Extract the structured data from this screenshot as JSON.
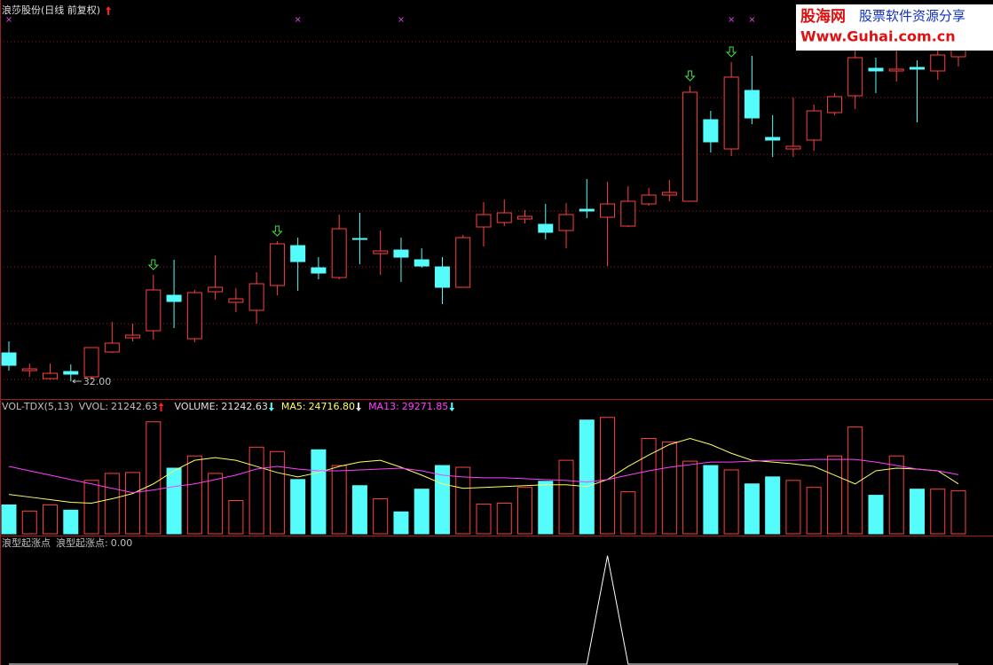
{
  "chart_data": {
    "type": "candlestick",
    "title": "浪莎股份(日线 前复权)",
    "ylim": [
      31,
      53.5
    ],
    "open": [
      33.6,
      32.6,
      32.15,
      32.55,
      32.25,
      33.65,
      34.45,
      34.85,
      36.85,
      34.4,
      37.05,
      36.45,
      36.0,
      37.4,
      39.65,
      38.4,
      37.85,
      40.05,
      39.2,
      39.4,
      38.85,
      38.45,
      37.3,
      40.7,
      40.95,
      41.15,
      40.85,
      40.5,
      41.7,
      41.25,
      40.75,
      42.0,
      42.5,
      42.15,
      46.75,
      45.1,
      48.4,
      45.75,
      45.1,
      45.6,
      47.15,
      48.1,
      49.65,
      49.5,
      49.7,
      49.5,
      50.3
    ],
    "high": [
      34.25,
      33.0,
      33.0,
      32.95,
      33.9,
      35.35,
      35.25,
      38.0,
      38.85,
      37.15,
      39.1,
      37.25,
      38.15,
      39.9,
      40.1,
      39.0,
      41.4,
      41.5,
      40.5,
      40.1,
      39.5,
      39.0,
      40.25,
      42.1,
      42.25,
      41.65,
      42.0,
      42.05,
      43.4,
      43.25,
      43.0,
      42.9,
      43.35,
      48.65,
      47.25,
      50.0,
      50.35,
      47.0,
      48.0,
      47.6,
      48.25,
      51.25,
      50.25,
      51.0,
      50.1,
      50.7,
      51.5
    ],
    "low": [
      32.6,
      32.25,
      32.1,
      32.0,
      32.1,
      33.6,
      34.25,
      34.35,
      35.0,
      34.2,
      36.6,
      35.9,
      35.25,
      36.85,
      37.1,
      37.75,
      37.75,
      38.6,
      38.0,
      37.6,
      38.4,
      36.35,
      37.3,
      39.6,
      40.75,
      40.9,
      40.0,
      39.5,
      41.2,
      38.5,
      40.7,
      41.9,
      42.15,
      42.15,
      44.9,
      44.7,
      46.5,
      44.65,
      44.65,
      45.0,
      47.0,
      47.35,
      48.25,
      48.9,
      46.6,
      49.0,
      49.75
    ],
    "close": [
      32.9,
      32.7,
      32.45,
      32.4,
      33.9,
      34.15,
      34.6,
      37.15,
      36.5,
      37.0,
      37.3,
      36.65,
      37.5,
      39.75,
      38.75,
      38.1,
      40.6,
      40.0,
      39.35,
      39.0,
      38.5,
      37.3,
      40.1,
      41.4,
      41.5,
      41.3,
      40.4,
      41.4,
      41.6,
      42.0,
      42.15,
      42.5,
      42.65,
      48.3,
      45.5,
      49.15,
      46.85,
      45.6,
      45.25,
      47.25,
      48.05,
      50.25,
      49.5,
      49.6,
      49.6,
      50.4,
      50.75
    ],
    "up_color": "#ff4040",
    "down_color": "#54fcfc",
    "cross_markers": [
      0,
      14,
      19,
      35,
      36
    ],
    "cross_color": "#c040c0",
    "buy_arrows": [
      7,
      13,
      33,
      35
    ],
    "buy_arrow_color": "#40e040",
    "low_label": {
      "index": 3,
      "value": 32,
      "label": "32.00"
    },
    "volume": {
      "indicator": "VOL-TDX(5,13)",
      "vvol_label": "VVOL:",
      "ylim": [
        0,
        65000
      ],
      "series": [
        {
          "name": "VOLUME:",
          "color": "#e0e0e0",
          "values": [
            14300,
            11270,
            14300,
            11700,
            26430,
            29900,
            30330,
            55460,
            32500,
            38560,
            29900,
            16470,
            42900,
            40730,
            26870,
            41600,
            33800,
            23830,
            17330,
            10830,
            22100,
            33800,
            32930,
            14730,
            15170,
            22970,
            26000,
            36400,
            56330,
            57630,
            20800,
            47230,
            45500,
            35970,
            33800,
            31630,
            24700,
            28170,
            26430,
            22970,
            38560,
            52870,
            19070,
            38560,
            22100,
            22100,
            21242.63
          ]
        },
        {
          "name": "MA5:",
          "color": "#ffff60",
          "value_label": "24716.80",
          "values": [
            19500,
            18200,
            16900,
            15600,
            15170,
            17330,
            19930,
            24700,
            31200,
            36400,
            37700,
            36400,
            33360,
            30330,
            28160,
            30330,
            33360,
            35530,
            36400,
            32930,
            29030,
            24700,
            22530,
            22960,
            23400,
            23830,
            24260,
            24260,
            23400,
            26860,
            33360,
            39000,
            44200,
            47230,
            44200,
            39860,
            36400,
            35530,
            34660,
            33360,
            29030,
            24700,
            31200,
            32500,
            32060,
            31200,
            24716.8
          ]
        },
        {
          "name": "MA13:",
          "color": "#ff40ff",
          "value_label": "29271.85",
          "values": [
            33360,
            31200,
            29030,
            26860,
            24700,
            22530,
            20370,
            21670,
            23400,
            24700,
            26860,
            29030,
            32060,
            33360,
            32060,
            31200,
            31200,
            31630,
            32060,
            32500,
            31200,
            29030,
            28160,
            27730,
            27730,
            27300,
            26860,
            26430,
            25560,
            26860,
            29030,
            31200,
            32930,
            34230,
            35530,
            35530,
            35960,
            36400,
            36400,
            36830,
            36830,
            36830,
            35530,
            33800,
            32060,
            31200,
            29271.85
          ]
        }
      ]
    },
    "signal": {
      "indicator": "浪型起涨点",
      "name": "浪型起涨点:",
      "color": "#ffffff",
      "ylim": [
        0,
        1.17
      ],
      "values": [
        0,
        0,
        0,
        0,
        0,
        0,
        0,
        0,
        0,
        0,
        0,
        0,
        0,
        0,
        0,
        0,
        0,
        0,
        0,
        0,
        0,
        0,
        0,
        0,
        0,
        0,
        0,
        0,
        0,
        1,
        0,
        0,
        0,
        0,
        0,
        0,
        0,
        0,
        0,
        0,
        0,
        0,
        0,
        0,
        0,
        0,
        0
      ],
      "value_label": "0.00"
    }
  },
  "watermark": {
    "brand": "股海网",
    "slogan": "股票软件资源分享",
    "url": "Www.Guhai.com.cn"
  }
}
